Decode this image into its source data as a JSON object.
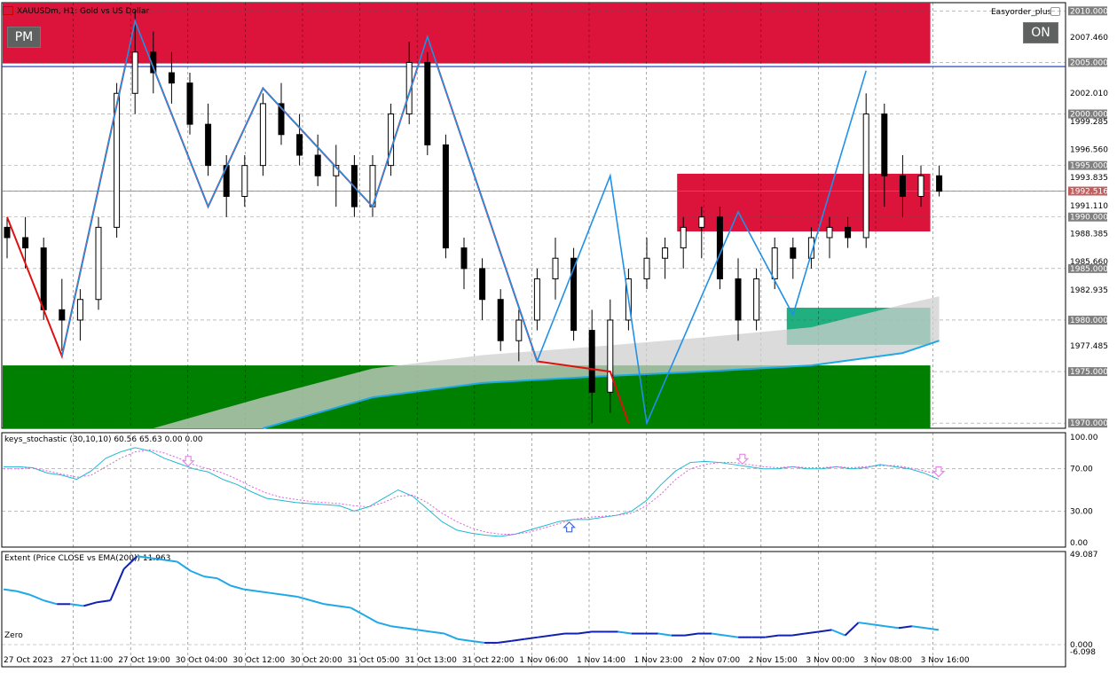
{
  "chart_header": {
    "symbol_title": "XAUUSDm, H1:  Gold vs US Dollar",
    "robot_name": "Easyorder_plus",
    "pm_button": "PM",
    "on_button": "ON"
  },
  "chart_data": [
    {
      "type": "candlestick",
      "title": "XAUUSDm, H1:  Gold vs US Dollar",
      "ylim": [
        1969.5,
        2010.8
      ],
      "price_labels": [
        "2010.000",
        "2007.460",
        "2005.000",
        "2002.010",
        "2000.000",
        "1999.285",
        "1996.560",
        "1995.000",
        "1993.835",
        "1992.516",
        "1991.110",
        "1990.000",
        "1988.385",
        "1985.660",
        "1985.000",
        "1982.935",
        "1980.000",
        "1977.485",
        "1975.000",
        "1970.000"
      ],
      "price_label_values": [
        2010.0,
        2007.46,
        2005.0,
        2002.01,
        2000.0,
        1999.285,
        1996.56,
        1995.0,
        1993.835,
        1992.516,
        1991.11,
        1990.0,
        1988.385,
        1985.66,
        1985.0,
        1982.935,
        1980.0,
        1977.485,
        1975.0,
        1970.0
      ],
      "boxed_price_labels": [
        "2010.000",
        "2005.000",
        "2000.000",
        "1995.000",
        "1992.516",
        "1990.000",
        "1985.000",
        "1980.000",
        "1975.000",
        "1970.000"
      ],
      "x_labels": [
        "27 Oct 2023",
        "27 Oct 11:00",
        "27 Oct 19:00",
        "30 Oct 04:00",
        "30 Oct 12:00",
        "30 Oct 20:00",
        "31 Oct 05:00",
        "31 Oct 13:00",
        "31 Oct 22:00",
        "1 Nov 06:00",
        "1 Nov 14:00",
        "1 Nov 23:00",
        "2 Nov 07:00",
        "2 Nov 15:00",
        "3 Nov 00:00",
        "3 Nov 08:00",
        "3 Nov 16:00"
      ],
      "current_price": 1992.516,
      "bid_line": 2004.6,
      "zones": [
        {
          "name": "supply-zone-top",
          "color": "#dc143c",
          "from_bar": 0,
          "to_bar": 51,
          "low": 2004.9,
          "high": 2010.8
        },
        {
          "name": "supply-zone-mid",
          "color": "#dc143c",
          "from_bar": 37,
          "to_bar": 51,
          "low": 1988.6,
          "high": 1994.2
        },
        {
          "name": "demand-zone-bottom",
          "color": "#008000",
          "from_bar": 0,
          "to_bar": 51,
          "low": 1969.5,
          "high": 1975.6
        },
        {
          "name": "demand-zone-mid",
          "color": "#20b080",
          "from_bar": 43,
          "to_bar": 51,
          "low": 1977.6,
          "high": 1981.2
        }
      ],
      "candles": [
        [
          1989,
          1990,
          1986,
          1988
        ],
        [
          1988,
          1990,
          1985,
          1987
        ],
        [
          1987,
          1988,
          1980,
          1981
        ],
        [
          1981,
          1984,
          1977,
          1980
        ],
        [
          1980,
          1983,
          1978,
          1982
        ],
        [
          1982,
          1990,
          1981,
          1989
        ],
        [
          1989,
          2003,
          1988,
          2002
        ],
        [
          2002,
          2010,
          2000,
          2006
        ],
        [
          2006,
          2008,
          2002,
          2004
        ],
        [
          2004,
          2006,
          2001,
          2003
        ],
        [
          2003,
          2004,
          1998,
          1999
        ],
        [
          1999,
          2001,
          1994,
          1995
        ],
        [
          1995,
          1996,
          1990,
          1992
        ],
        [
          1992,
          1996,
          1991,
          1995
        ],
        [
          1995,
          2002,
          1994,
          2001
        ],
        [
          2001,
          2003,
          1997,
          1998
        ],
        [
          1998,
          2000,
          1995,
          1996
        ],
        [
          1996,
          1998,
          1993,
          1994
        ],
        [
          1994,
          1997,
          1991,
          1995
        ],
        [
          1995,
          1996,
          1990,
          1991
        ],
        [
          1991,
          1996,
          1990,
          1995
        ],
        [
          1995,
          2001,
          1994,
          2000
        ],
        [
          2000,
          2007,
          1999,
          2005
        ],
        [
          2005,
          2006,
          1996,
          1997
        ],
        [
          1997,
          1998,
          1986,
          1987
        ],
        [
          1987,
          1988,
          1983,
          1985
        ],
        [
          1985,
          1986,
          1980,
          1982
        ],
        [
          1982,
          1983,
          1977,
          1978
        ],
        [
          1978,
          1981,
          1976,
          1980
        ],
        [
          1980,
          1985,
          1979,
          1984
        ],
        [
          1984,
          1988,
          1982,
          1986
        ],
        [
          1986,
          1987,
          1978,
          1979
        ],
        [
          1979,
          1981,
          1970,
          1973
        ],
        [
          1973,
          1982,
          1971,
          1980
        ],
        [
          1980,
          1985,
          1979,
          1984
        ],
        [
          1984,
          1988,
          1983,
          1986
        ],
        [
          1986,
          1988,
          1984,
          1987
        ],
        [
          1987,
          1990,
          1985,
          1989
        ],
        [
          1989,
          1991,
          1986,
          1990
        ],
        [
          1990,
          1991,
          1983,
          1984
        ],
        [
          1984,
          1986,
          1978,
          1980
        ],
        [
          1980,
          1985,
          1979,
          1984
        ],
        [
          1984,
          1988,
          1983,
          1987
        ],
        [
          1987,
          1988,
          1984,
          1986
        ],
        [
          1986,
          1989,
          1985,
          1988
        ],
        [
          1988,
          1990,
          1986,
          1989
        ],
        [
          1989,
          1990,
          1987,
          1988
        ],
        [
          1988,
          2002,
          1987,
          2000
        ],
        [
          2000,
          2001,
          1991,
          1994
        ],
        [
          1994,
          1996,
          1990,
          1992
        ],
        [
          1992,
          1995,
          1991,
          1994
        ],
        [
          1994,
          1995,
          1992,
          1992.5
        ]
      ],
      "zigzag_red": [
        [
          0,
          1990
        ],
        [
          3,
          1976.5
        ],
        [
          7,
          2009
        ],
        [
          11,
          1991
        ],
        [
          14,
          2002.5
        ],
        [
          20,
          1991
        ],
        [
          23,
          2007.5
        ],
        [
          29,
          1976
        ],
        [
          33,
          1975
        ],
        [
          34,
          1970
        ]
      ],
      "zigzag_blue": [
        [
          3,
          1976.5
        ],
        [
          7,
          2009
        ],
        [
          11,
          1991
        ],
        [
          14,
          2002.5
        ],
        [
          20,
          1991
        ],
        [
          23,
          2007.5
        ],
        [
          29,
          1976
        ],
        [
          33,
          1994
        ],
        [
          35,
          1970
        ],
        [
          40,
          1990.5
        ],
        [
          43,
          1980.5
        ],
        [
          47,
          2004.2
        ]
      ],
      "ema_line": [
        [
          14,
          1969.5
        ],
        [
          20,
          1972.5
        ],
        [
          26,
          1973.9
        ],
        [
          32,
          1974.5
        ],
        [
          38,
          1975
        ],
        [
          44,
          1975.6
        ],
        [
          49,
          1976.8
        ],
        [
          51,
          1978
        ]
      ],
      "ema_band_upper": [
        [
          8,
          1969.5
        ],
        [
          14,
          1972.5
        ],
        [
          20,
          1975.3
        ],
        [
          26,
          1976.6
        ],
        [
          32,
          1977.4
        ],
        [
          38,
          1978.3
        ],
        [
          44,
          1979.3
        ],
        [
          49,
          1981.5
        ],
        [
          51,
          1982.3
        ]
      ]
    },
    {
      "type": "line",
      "title": "keys_stochastic (30,10,10) 60.56 65.63 0.00 0.00",
      "ylim": [
        0,
        100
      ],
      "y_labels": [
        "100.00",
        "70.00",
        "30.00",
        "0.00"
      ],
      "y_label_values": [
        100,
        70,
        30,
        0
      ],
      "series": [
        {
          "values": [
            72,
            72,
            71,
            66,
            64,
            60,
            68,
            80,
            86,
            90,
            87,
            80,
            75,
            70,
            67,
            60,
            55,
            48,
            42,
            40,
            38,
            37,
            36,
            35,
            30,
            34,
            42,
            50,
            44,
            32,
            20,
            12,
            9,
            7,
            6,
            8,
            12,
            16,
            20,
            22,
            22,
            24,
            26,
            30,
            40,
            55,
            68,
            76,
            77,
            76,
            74,
            72,
            70,
            70,
            72,
            70,
            70,
            72,
            70,
            71,
            74,
            72,
            70,
            66,
            60
          ]
        },
        {
          "values": [
            70,
            70,
            71,
            68,
            65,
            62,
            64,
            72,
            80,
            86,
            88,
            85,
            80,
            74,
            70,
            66,
            60,
            53,
            47,
            43,
            41,
            39,
            38,
            37,
            35,
            34,
            38,
            44,
            45,
            38,
            28,
            20,
            14,
            10,
            8,
            8,
            10,
            14,
            18,
            22,
            24,
            25,
            26,
            28,
            35,
            46,
            60,
            70,
            74,
            76,
            76,
            74,
            72,
            71,
            72,
            71,
            71,
            72,
            71,
            72,
            73,
            73,
            71,
            68,
            65
          ]
        }
      ],
      "arrows": [
        {
          "index": 16,
          "dir": "down",
          "color": "#ee82ee"
        },
        {
          "index": 49,
          "dir": "up",
          "color": "#4169e1"
        },
        {
          "index": 64,
          "dir": "down",
          "color": "#ee82ee"
        },
        {
          "index": 81,
          "dir": "down",
          "color": "#ee82ee"
        }
      ]
    },
    {
      "type": "line",
      "title": "Extent (Price CLOSE vs EMA(200)) 11.963",
      "ylim": [
        -6.098,
        49.087
      ],
      "y_labels": [
        "49.087",
        "0.000",
        "-6.098"
      ],
      "y_label_values": [
        49.087,
        0.0,
        -6.098
      ],
      "zero_label": "Zero",
      "series": [
        {
          "values": [
            30,
            29,
            27,
            24,
            22,
            22,
            21,
            23,
            24,
            41,
            48,
            47,
            46,
            45,
            40,
            37,
            36,
            32,
            30,
            29,
            28,
            27,
            26,
            24,
            22,
            21,
            20,
            16,
            12,
            10,
            9,
            8,
            7,
            6,
            3,
            2,
            1,
            1,
            2,
            3,
            4,
            5,
            6,
            6,
            7,
            7,
            7,
            6,
            6,
            6,
            5,
            5,
            6,
            6,
            5,
            4,
            4,
            4,
            5,
            5,
            6,
            7,
            8,
            5,
            12,
            11,
            10,
            9,
            10,
            9,
            8
          ]
        }
      ]
    }
  ]
}
